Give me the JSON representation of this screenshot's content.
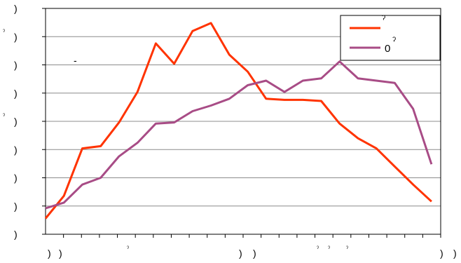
{
  "chart_data": {
    "type": "line",
    "x": [
      1,
      2,
      3,
      4,
      5,
      6,
      7,
      8,
      9,
      10,
      11,
      12,
      13,
      14,
      15,
      16,
      17,
      18,
      19,
      20,
      21,
      22,
      23,
      24,
      25,
      26,
      27,
      28,
      29,
      30,
      31,
      32,
      33,
      34,
      35,
      36,
      37,
      38,
      39,
      40,
      41,
      42
    ],
    "series": [
      {
        "name": "",
        "color": "#ff3300",
        "values": [
          0.4,
          2.4,
          6.6,
          6.8,
          8.9,
          11.6,
          15.9,
          14.1,
          17.0,
          17.7,
          14.9,
          13.4,
          11.0,
          10.9,
          10.9,
          10.8,
          8.8,
          7.5,
          6.6,
          5.0,
          3.4,
          1.9,
          1.1,
          0.5,
          0.4,
          0.4,
          0.4,
          0.4,
          0.4,
          0.4,
          0.4,
          0.4,
          0.4,
          0.4,
          0.4,
          0.4,
          0.4,
          0.4,
          0.4,
          0.4,
          0.4,
          0.4
        ]
      },
      {
        "name": "0",
        "color": "#a84c86",
        "values": [
          1.3,
          1.8,
          3.4,
          4.0,
          5.9,
          7.1,
          8.8,
          8.9,
          9.9,
          10.4,
          11.0,
          12.2,
          12.6,
          11.6,
          12.6,
          12.8,
          14.3,
          12.8,
          12.6,
          12.4,
          10.1,
          5.2,
          2.5,
          1.1,
          1.2,
          1.2,
          1.2,
          1.2,
          1.2,
          1.2,
          1.2,
          1.2,
          1.2,
          1.2,
          1.2,
          1.2,
          1.2,
          1.2,
          1.2,
          1.2,
          1.2,
          1.2
        ]
      }
    ],
    "ylim": [
      -1,
      19
    ],
    "y_ticks": [
      ")",
      ")",
      ")",
      ")",
      ")",
      ")",
      ")",
      ")",
      ")"
    ],
    "x_ticks": [
      ")",
      ")",
      ")",
      ")",
      ")",
      ")"
    ],
    "grid": true,
    "legend": "top-right"
  },
  "legend": {
    "series1_mark": "ˀ",
    "series2_label": "0",
    "series2_mark": "ˀ"
  },
  "stray_marks": {
    "left_a": "ˀ",
    "left_b": "ˀ",
    "plot_dash": "-",
    "x_a": "ˀ",
    "x_b": "ˀ",
    "x_c": "ˀ",
    "x_d": "ˀ"
  }
}
